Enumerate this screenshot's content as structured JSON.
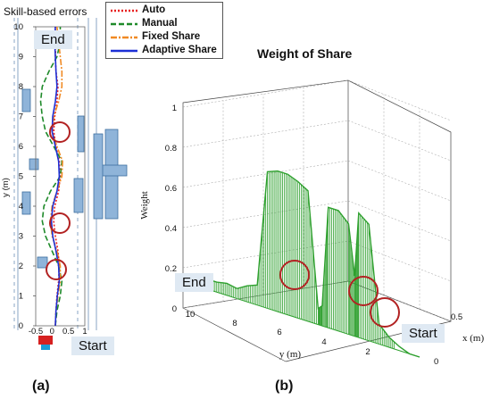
{
  "panel_a": {
    "title": "Skill-based errors",
    "end_label": "End",
    "start_label": "Start",
    "caption": "(a)",
    "legend": [
      {
        "label": "Auto",
        "color": "#e81e1e",
        "dash": "2,2"
      },
      {
        "label": "Manual",
        "color": "#1f8a2a",
        "dash": "6,3"
      },
      {
        "label": "Fixed Share",
        "color": "#f08a24",
        "dash": "7,2,2,2"
      },
      {
        "label": "Adaptive Share",
        "color": "#1c2fd6",
        "dash": ""
      }
    ]
  },
  "panel_b": {
    "title": "Weight of Share",
    "end_label": "End",
    "start_label": "Start",
    "caption": "(b)"
  },
  "chart_data": [
    {
      "type": "line",
      "title": "Skill-based errors",
      "xlabel": "",
      "ylabel": "y (m)",
      "xlim": [
        -0.5,
        1
      ],
      "ylim": [
        0,
        10
      ],
      "xticks": [
        "-0.5",
        "0",
        "0.5",
        "1"
      ],
      "yticks": [
        "0",
        "1",
        "2",
        "3",
        "4",
        "5",
        "6",
        "7",
        "8",
        "9",
        "10"
      ],
      "y": [
        0,
        0.5,
        1,
        1.5,
        2,
        2.5,
        3,
        3.5,
        4,
        4.5,
        5,
        5.5,
        6,
        6.5,
        7,
        7.5,
        8,
        8.5,
        9,
        9.5,
        10
      ],
      "series": [
        {
          "name": "Auto",
          "color": "#e81e1e",
          "x": [
            0.1,
            0.12,
            0.15,
            0.2,
            0.22,
            0.18,
            0.1,
            0.05,
            0.08,
            0.2,
            0.25,
            0.22,
            0.12,
            0.05,
            0.08,
            0.15,
            0.18,
            0.12,
            0.1,
            0.12,
            0.1
          ]
        },
        {
          "name": "Manual",
          "color": "#1f8a2a",
          "x": [
            0.1,
            0.15,
            0.25,
            0.3,
            0.2,
            0.0,
            -0.2,
            -0.3,
            -0.25,
            -0.05,
            0.25,
            0.3,
            0.05,
            -0.2,
            -0.3,
            -0.35,
            -0.3,
            -0.1,
            0.15,
            0.25,
            0.25
          ]
        },
        {
          "name": "Fixed Share",
          "color": "#f08a24",
          "x": [
            0.1,
            0.12,
            0.18,
            0.25,
            0.25,
            0.15,
            0.0,
            -0.05,
            0.0,
            0.15,
            0.3,
            0.32,
            0.15,
            0.0,
            0.05,
            0.2,
            0.3,
            0.3,
            0.25,
            0.2,
            0.15
          ]
        },
        {
          "name": "Adaptive Share",
          "color": "#1c2fd6",
          "x": [
            0.1,
            0.12,
            0.16,
            0.22,
            0.2,
            0.12,
            0.02,
            -0.02,
            0.02,
            0.15,
            0.22,
            0.2,
            0.1,
            0.0,
            0.02,
            0.1,
            0.15,
            0.12,
            0.1,
            0.08,
            0.1
          ]
        }
      ],
      "annotations": [
        "End",
        "Start"
      ]
    },
    {
      "type": "line",
      "title": "Weight of Share",
      "xlabel": "x (m)",
      "ylabel": "Weight",
      "zlabel": "y (m)",
      "x_ticks": [
        "0",
        "0.5"
      ],
      "weight_ticks": [
        "0",
        "0.2",
        "0.4",
        "0.6",
        "0.8",
        "1"
      ],
      "y_ticks": [
        "2",
        "4",
        "6",
        "8",
        "10"
      ],
      "weight_range": [
        0,
        1
      ],
      "y_range": [
        0,
        11
      ],
      "series": [
        {
          "name": "",
          "color": "#2ea02e",
          "y": [
            0,
            0.5,
            1,
            1.5,
            2,
            2.5,
            3,
            3.2,
            3.5,
            4,
            4.5,
            4.8,
            5,
            5.5,
            6,
            6.5,
            7,
            7.5,
            8,
            8.5,
            9,
            9.5,
            10,
            10.5,
            11
          ],
          "weight": [
            0.0,
            0.0,
            0.02,
            0.05,
            0.1,
            0.58,
            0.62,
            0.3,
            0.55,
            0.6,
            0.6,
            0.1,
            0.08,
            0.65,
            0.68,
            0.7,
            0.7,
            0.68,
            0.1,
            0.08,
            0.05,
            0.06,
            0.05,
            0.05,
            0.06
          ]
        }
      ],
      "annotations": [
        "End",
        "Start"
      ]
    }
  ]
}
